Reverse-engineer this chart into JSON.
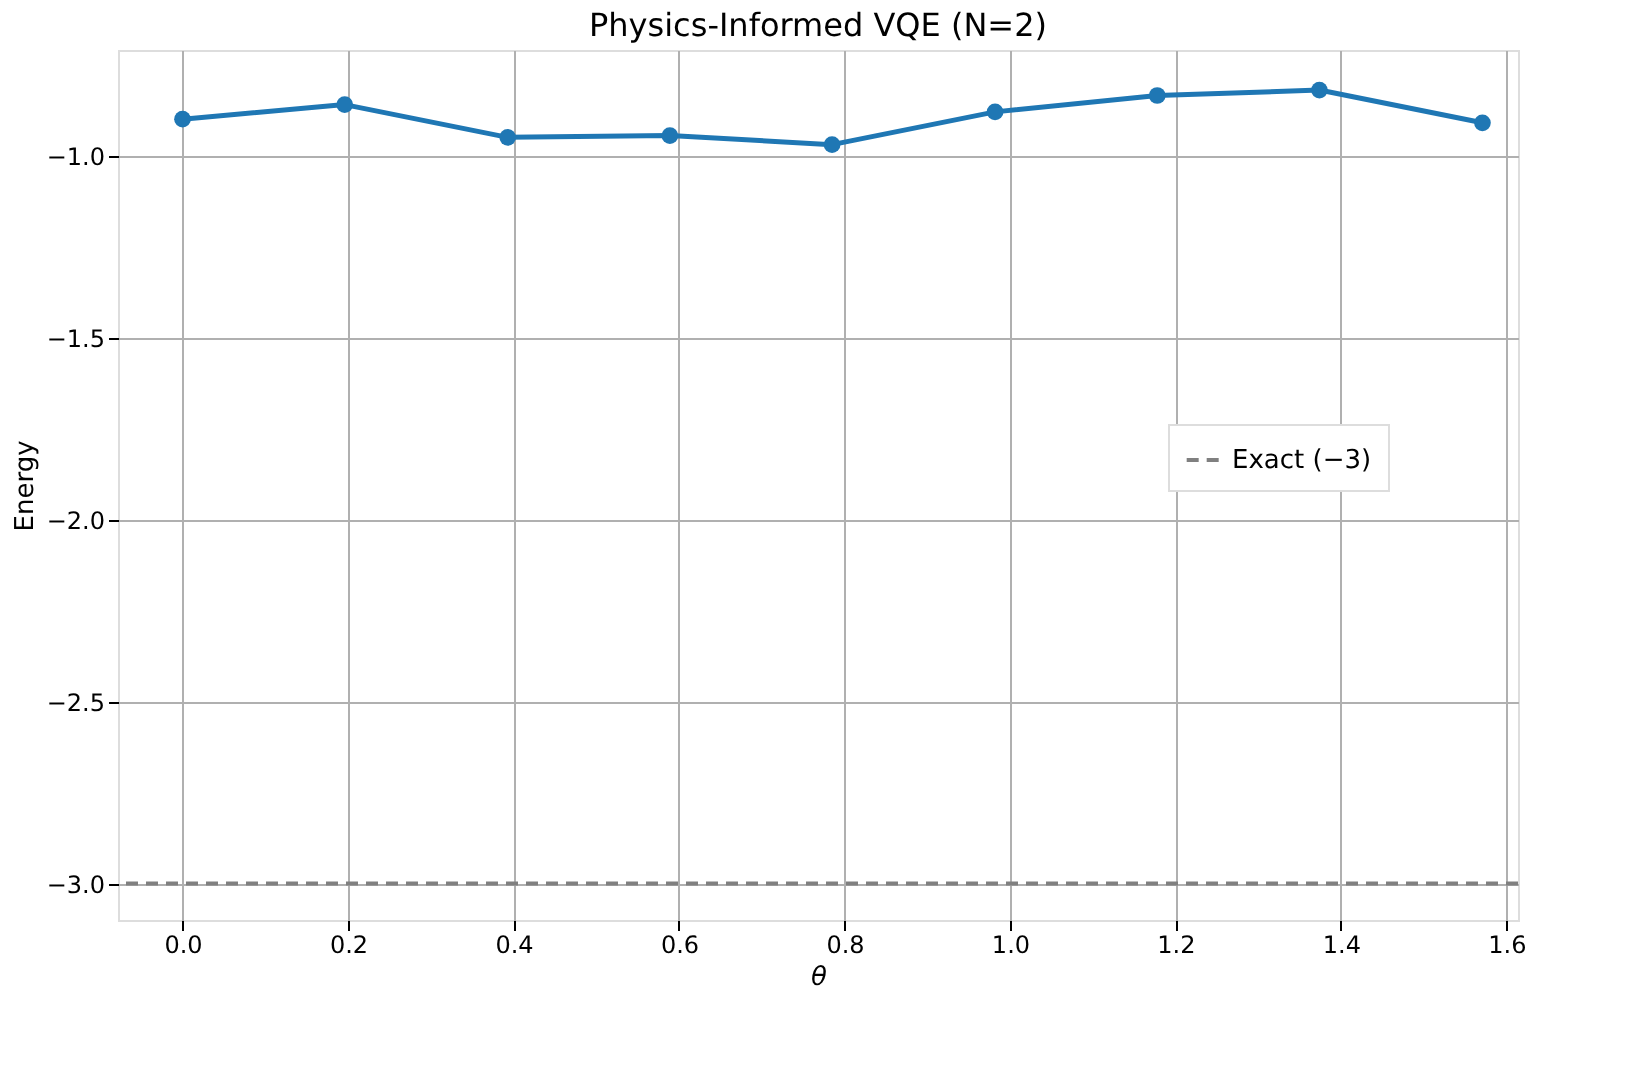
{
  "chart_data": {
    "type": "line",
    "title": "Physics-Informed VQE (N=2)",
    "xlabel": "θ",
    "ylabel": "Energy",
    "x": [
      0,
      0.196,
      0.393,
      0.589,
      0.785,
      0.982,
      1.178,
      1.374,
      1.571
    ],
    "series": [
      {
        "color": "#1f77b4",
        "values": [
          -0.9,
          -0.86,
          -0.95,
          -0.945,
          -0.97,
          -0.88,
          -0.835,
          -0.82,
          -0.91
        ]
      }
    ],
    "xlim": [
      -0.078,
      1.614
    ],
    "xticks": [
      {
        "value": 0,
        "label": "0.0"
      },
      0.2,
      0.4,
      0.6,
      0.8,
      {
        "value": 1,
        "label": "1.0"
      },
      1.2,
      1.4,
      1.6
    ],
    "ylim": [
      -3.1,
      -0.71
    ],
    "yticks": [
      {
        "value": -3,
        "label": "−3.0"
      },
      {
        "value": -2.5,
        "label": "−2.5"
      },
      {
        "value": -2,
        "label": "−2.0"
      },
      {
        "value": -1.5,
        "label": "−1.5"
      },
      {
        "value": -1,
        "label": "−1.0"
      }
    ],
    "ref_lines": [
      {
        "axis": "y",
        "value": -3,
        "label": "Exact (−3)",
        "color": "#808080",
        "line_style": "dashed"
      }
    ],
    "grid": true,
    "legend": "right",
    "marker": "circle",
    "line_style": "solid"
  }
}
